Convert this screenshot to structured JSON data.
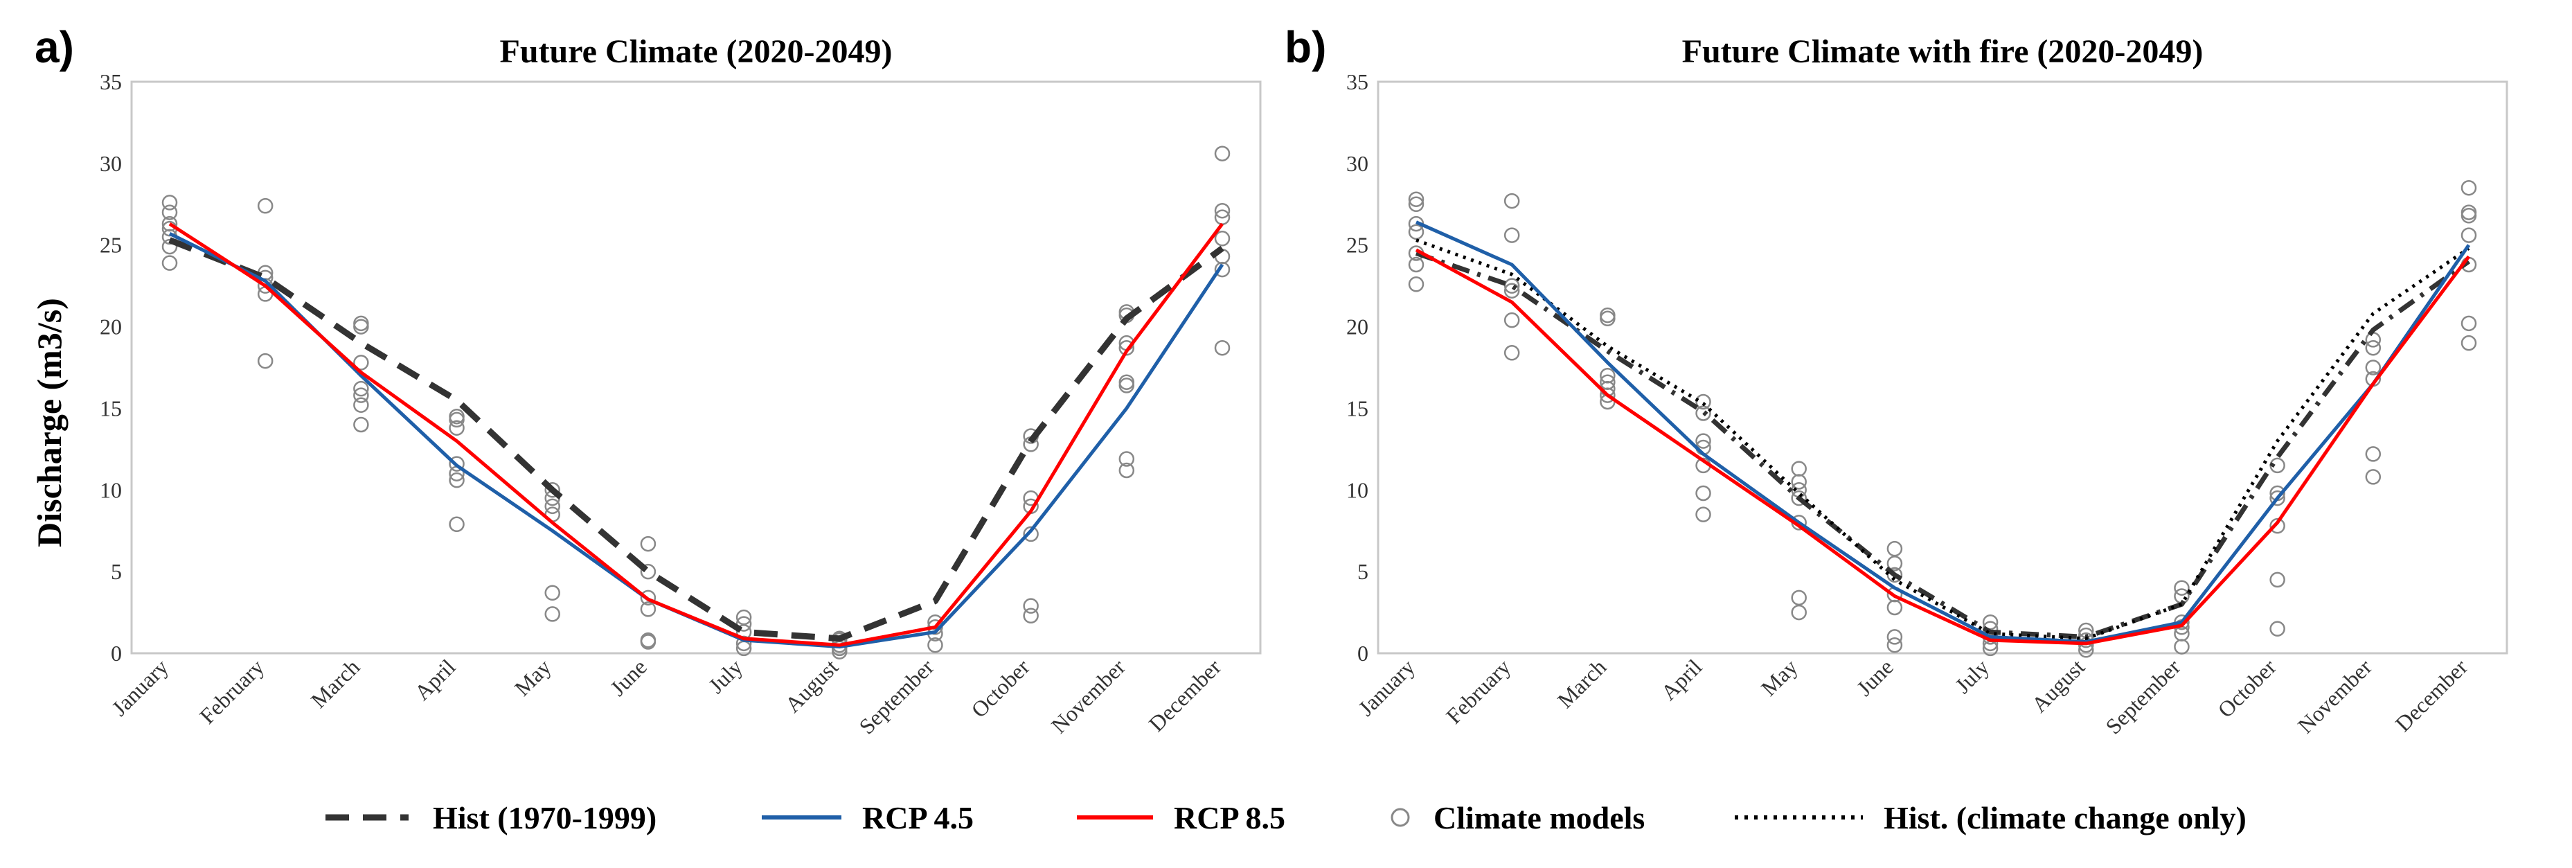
{
  "months": [
    "January",
    "February",
    "March",
    "April",
    "May",
    "June",
    "July",
    "August",
    "September",
    "October",
    "November",
    "December"
  ],
  "colors": {
    "hist": "#333333",
    "rcp45": "#1f5fa8",
    "rcp85": "#ff0000",
    "models": "#888888",
    "hist_cc": "#000000"
  },
  "legend": {
    "hist": "Hist (1970-1999)",
    "rcp45": "RCP 4.5",
    "rcp85": "RCP 8.5",
    "models": "Climate models",
    "hist_cc": "Hist. (climate change only)"
  },
  "chart_data": [
    {
      "type": "line",
      "panel_label": "a)",
      "title": "Future Climate (2020-2049)",
      "ylabel": "Discharge (m3/s)",
      "xlabel": "",
      "ylim": [
        0,
        35
      ],
      "yticks": [
        0,
        5,
        10,
        15,
        20,
        25,
        30,
        35
      ],
      "categories": [
        "January",
        "February",
        "March",
        "April",
        "May",
        "June",
        "July",
        "August",
        "September",
        "October",
        "November",
        "December"
      ],
      "series": [
        {
          "name": "Hist (1970-1999)",
          "key": "hist",
          "style": "dashed",
          "values": [
            25.3,
            23.0,
            19.0,
            15.5,
            10.0,
            5.0,
            1.3,
            0.9,
            3.2,
            13.0,
            20.5,
            24.8
          ]
        },
        {
          "name": "RCP 4.5",
          "key": "rcp45",
          "style": "solid",
          "values": [
            25.7,
            22.8,
            17.0,
            11.5,
            7.5,
            3.3,
            0.8,
            0.4,
            1.3,
            7.5,
            15.0,
            23.8
          ]
        },
        {
          "name": "RCP 8.5",
          "key": "rcp85",
          "style": "solid",
          "values": [
            26.3,
            22.5,
            17.2,
            13.0,
            8.0,
            3.3,
            0.9,
            0.5,
            1.6,
            8.7,
            18.5,
            26.3
          ]
        }
      ],
      "models": [
        [
          23.9,
          24.9,
          25.5,
          26.0,
          26.3,
          27.0,
          27.6
        ],
        [
          17.9,
          22.0,
          22.5,
          23.0,
          23.3,
          27.4
        ],
        [
          14.0,
          15.2,
          15.8,
          16.2,
          17.8,
          20.0,
          20.2
        ],
        [
          7.9,
          10.6,
          11.0,
          11.6,
          13.8,
          14.3,
          14.5
        ],
        [
          2.4,
          3.7,
          8.5,
          9.0,
          9.5,
          10.0
        ],
        [
          0.7,
          0.8,
          2.7,
          3.4,
          5.0,
          6.7
        ],
        [
          0.3,
          0.6,
          1.3,
          1.8,
          2.2
        ],
        [
          0.1,
          0.3,
          0.5,
          0.8,
          0.9
        ],
        [
          0.5,
          1.2,
          1.6,
          1.9
        ],
        [
          2.3,
          2.9,
          7.3,
          9.0,
          9.5,
          12.8,
          13.3
        ],
        [
          11.2,
          11.9,
          16.4,
          16.6,
          18.7,
          19.0,
          20.7,
          20.9
        ],
        [
          18.7,
          23.5,
          24.3,
          25.4,
          26.7,
          27.1,
          30.6
        ]
      ]
    },
    {
      "type": "line",
      "panel_label": "b)",
      "title": "Future Climate with fire (2020-2049)",
      "ylabel": "",
      "xlabel": "",
      "ylim": [
        0,
        35
      ],
      "yticks": [
        0,
        5,
        10,
        15,
        20,
        25,
        30,
        35
      ],
      "categories": [
        "January",
        "February",
        "March",
        "April",
        "May",
        "June",
        "July",
        "August",
        "September",
        "October",
        "November",
        "December"
      ],
      "series": [
        {
          "name": "Hist (1970-1999)",
          "key": "hist",
          "style": "dashdot",
          "values": [
            24.5,
            22.5,
            18.5,
            14.8,
            9.5,
            4.8,
            1.3,
            1.0,
            3.0,
            12.0,
            19.8,
            24.0
          ]
        },
        {
          "name": "Hist. (climate change only)",
          "key": "hist_cc",
          "style": "dotted",
          "values": [
            25.3,
            23.2,
            18.8,
            15.3,
            9.8,
            4.5,
            1.2,
            0.9,
            3.0,
            13.0,
            20.8,
            24.8
          ]
        },
        {
          "name": "RCP 4.5",
          "key": "rcp45",
          "style": "solid",
          "values": [
            26.4,
            23.8,
            17.8,
            12.2,
            8.0,
            4.0,
            1.0,
            0.7,
            1.9,
            9.5,
            16.5,
            25.0
          ]
        },
        {
          "name": "RCP 8.5",
          "key": "rcp85",
          "style": "solid",
          "values": [
            24.7,
            21.5,
            15.8,
            11.8,
            7.8,
            3.5,
            0.8,
            0.6,
            1.7,
            8.0,
            16.5,
            24.3
          ]
        }
      ],
      "models": [
        [
          22.6,
          23.8,
          24.5,
          25.8,
          26.3,
          27.5,
          27.8
        ],
        [
          18.4,
          20.4,
          22.2,
          22.5,
          25.6,
          27.7
        ],
        [
          15.4,
          15.8,
          16.2,
          16.6,
          17.0,
          20.5,
          20.7
        ],
        [
          8.5,
          9.8,
          11.5,
          12.6,
          13.0,
          14.7,
          15.4
        ],
        [
          2.5,
          3.4,
          8.0,
          9.5,
          10.0,
          10.5,
          11.3
        ],
        [
          0.5,
          1.0,
          2.8,
          3.6,
          4.8,
          5.5,
          6.4
        ],
        [
          0.3,
          0.6,
          1.0,
          1.5,
          1.9
        ],
        [
          0.2,
          0.5,
          0.8,
          1.1,
          1.4
        ],
        [
          0.4,
          1.2,
          1.6,
          1.9,
          3.5,
          4.0
        ],
        [
          1.5,
          4.5,
          7.8,
          9.5,
          9.8,
          11.5
        ],
        [
          10.8,
          12.2,
          16.8,
          17.5,
          18.7,
          19.2
        ],
        [
          19.0,
          20.2,
          23.8,
          25.6,
          26.8,
          27.0,
          28.5
        ]
      ]
    }
  ]
}
